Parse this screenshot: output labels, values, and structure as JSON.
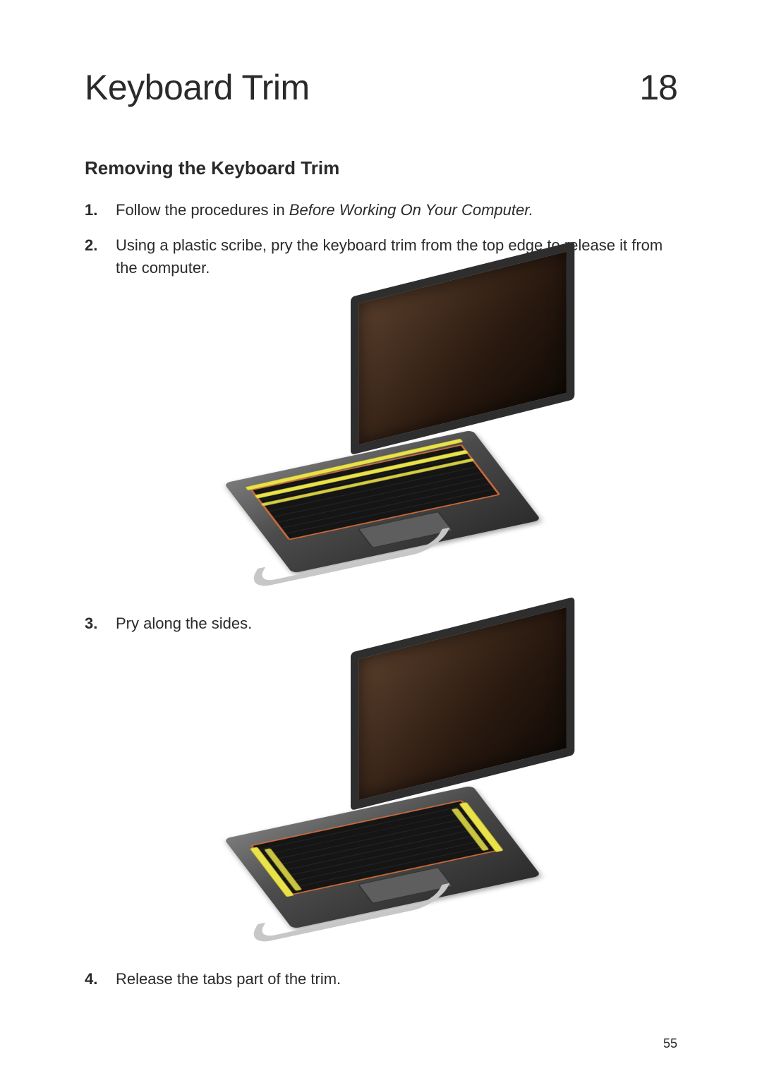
{
  "chapter": {
    "title": "Keyboard Trim",
    "number": "18"
  },
  "section": {
    "title": "Removing the Keyboard Trim"
  },
  "steps": {
    "s1_pre": "Follow the procedures in ",
    "s1_italic": "Before Working On Your Computer.",
    "s2": "Using a plastic scribe, pry the keyboard trim from the top edge to release it from the computer.",
    "s3": "Pry along the sides.",
    "s4": "Release the tabs part of the trim."
  },
  "pageNumber": "55",
  "colors": {
    "text": "#2a2a2a",
    "highlight": "#e9e24a",
    "trimAccent": "#c96a3a",
    "screenTint": "#5a3f2c",
    "baseMetal": "#7a7a7a"
  },
  "typography": {
    "chapterTitle_pt": 50,
    "chapterNumber_pt": 50,
    "sectionTitle_pt": 26,
    "body_pt": 22,
    "pageNumber_pt": 18
  },
  "figures": {
    "fig1": {
      "type": "infographic",
      "description": "Laptop with yellow highlight strips along the top edge of the keyboard trim",
      "highlightCount": 3,
      "highlightOrientation": "horizontal"
    },
    "fig2": {
      "type": "infographic",
      "description": "Laptop with yellow highlight strips along the left and right sides of the keyboard trim",
      "highlightCount": 4,
      "highlightOrientation": "vertical"
    }
  }
}
